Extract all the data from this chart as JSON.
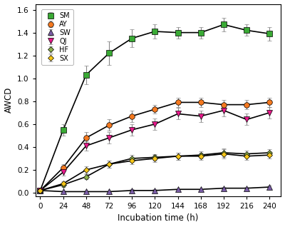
{
  "x": [
    0,
    24,
    48,
    72,
    96,
    120,
    144,
    168,
    192,
    216,
    240
  ],
  "series": {
    "SM": {
      "y": [
        0.02,
        0.55,
        1.03,
        1.22,
        1.35,
        1.41,
        1.4,
        1.4,
        1.47,
        1.42,
        1.39
      ],
      "yerr": [
        0.01,
        0.05,
        0.08,
        0.1,
        0.08,
        0.06,
        0.05,
        0.05,
        0.06,
        0.05,
        0.06
      ],
      "color": "#3aaa35",
      "marker": "s",
      "markersize": 5.5,
      "markeredge": "#000000"
    },
    "AY": {
      "y": [
        0.02,
        0.22,
        0.48,
        0.59,
        0.67,
        0.73,
        0.79,
        0.79,
        0.77,
        0.77,
        0.79
      ],
      "yerr": [
        0.01,
        0.03,
        0.05,
        0.05,
        0.05,
        0.04,
        0.04,
        0.04,
        0.04,
        0.04,
        0.04
      ],
      "color": "#f47920",
      "marker": "o",
      "markersize": 5.5,
      "markeredge": "#000000"
    },
    "SW": {
      "y": [
        0.02,
        0.01,
        0.01,
        0.01,
        0.02,
        0.02,
        0.03,
        0.03,
        0.04,
        0.04,
        0.05
      ],
      "yerr": [
        0.01,
        0.01,
        0.01,
        0.01,
        0.01,
        0.01,
        0.01,
        0.01,
        0.01,
        0.01,
        0.01
      ],
      "color": "#7b5ea7",
      "marker": "^",
      "markersize": 5.5,
      "markeredge": "#000000"
    },
    "QJ": {
      "y": [
        0.02,
        0.18,
        0.41,
        0.48,
        0.55,
        0.6,
        0.69,
        0.67,
        0.72,
        0.64,
        0.7
      ],
      "yerr": [
        0.01,
        0.03,
        0.04,
        0.05,
        0.05,
        0.05,
        0.05,
        0.05,
        0.05,
        0.05,
        0.05
      ],
      "color": "#e8198b",
      "marker": "v",
      "markersize": 5.5,
      "markeredge": "#000000"
    },
    "HF": {
      "y": [
        0.02,
        0.07,
        0.14,
        0.25,
        0.3,
        0.31,
        0.32,
        0.33,
        0.35,
        0.34,
        0.35
      ],
      "yerr": [
        0.01,
        0.02,
        0.02,
        0.03,
        0.03,
        0.03,
        0.03,
        0.03,
        0.04,
        0.03,
        0.03
      ],
      "color": "#8db14e",
      "marker": "D",
      "markersize": 4.5,
      "markeredge": "#000000"
    },
    "SX": {
      "y": [
        0.02,
        0.08,
        0.2,
        0.25,
        0.28,
        0.3,
        0.32,
        0.32,
        0.34,
        0.32,
        0.33
      ],
      "yerr": [
        0.01,
        0.02,
        0.03,
        0.03,
        0.03,
        0.03,
        0.03,
        0.03,
        0.04,
        0.03,
        0.03
      ],
      "color": "#f5c518",
      "marker": "D",
      "markersize": 4.5,
      "markeredge": "#000000"
    }
  },
  "xlabel": "Incubation time (h)",
  "ylabel": "AWCD",
  "xlim": [
    -5,
    252
  ],
  "ylim": [
    -0.03,
    1.65
  ],
  "yticks": [
    0.0,
    0.2,
    0.4,
    0.6,
    0.8,
    1.0,
    1.2,
    1.4,
    1.6
  ],
  "xticks": [
    0,
    24,
    48,
    72,
    96,
    120,
    144,
    168,
    192,
    216,
    240
  ],
  "legend_order": [
    "SM",
    "AY",
    "SW",
    "QJ",
    "HF",
    "SX"
  ],
  "background_color": "#ffffff",
  "line_color": "#000000",
  "line_width": 1.2,
  "ecolor": "#888888",
  "elinewidth": 0.8,
  "capsize": 2.0,
  "capthick": 0.8
}
